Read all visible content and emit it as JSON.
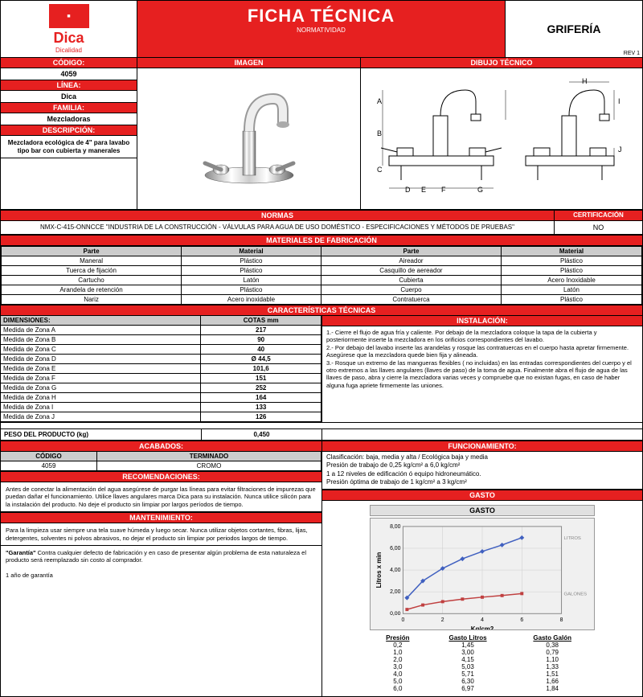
{
  "header": {
    "title": "FICHA TÉCNICA",
    "subtitle": "NORMATIVIDAD",
    "category": "GRIFERÍA",
    "rev": "REV 1",
    "brand": "Dica",
    "tagline": "Dicalidad"
  },
  "info": {
    "codigo_h": "CÓDIGO:",
    "codigo": "4059",
    "linea_h": "LÍNEA:",
    "linea": "Dica",
    "familia_h": "FAMILIA:",
    "familia": "Mezcladoras",
    "desc_h": "DESCRIPCIÓN:",
    "desc": "Mezcladora ecológica de 4\" para lavabo tipo bar con cubierta y manerales"
  },
  "areas": {
    "imagen": "IMAGEN",
    "dibujo": "DIBUJO TÉCNICO"
  },
  "normas": {
    "hdr": "NORMAS",
    "cert_hdr": "CERTIFICACIÓN",
    "text": "NMX-C-415-ONNCCE \"INDUSTRIA DE LA CONSTRUCCIÓN - VÁLVULAS PARA AGUA DE USO DOMÉSTICO - ESPECIFICACIONES Y MÉTODOS DE PRUEBAS\"",
    "cert": "NO"
  },
  "mat": {
    "hdr": "MATERIALES DE FABRICACIÓN",
    "cols": [
      "Parte",
      "Material",
      "Parte",
      "Material"
    ],
    "rows": [
      [
        "Maneral",
        "Plástico",
        "Aireador",
        "Plástico"
      ],
      [
        "Tuerca de fijación",
        "Plástico",
        "Casquillo de aereador",
        "Plástico"
      ],
      [
        "Cartucho",
        "Latón",
        "Cubierta",
        "Acero Inoxidable"
      ],
      [
        "Arandela de retención",
        "Plástico",
        "Cuerpo",
        "Latón"
      ],
      [
        "Nariz",
        "Acero inoxidable",
        "Contratuerca",
        "Plástico"
      ]
    ]
  },
  "tech": {
    "hdr": "CARACTERÍSTICAS TÉCNICAS",
    "dim_h": "DIMENSIONES:",
    "cotas_h": "COTAS mm",
    "inst_h": "INSTALACIÓN:",
    "dims": [
      [
        "Medida de Zona A",
        "217"
      ],
      [
        "Medida de Zona B",
        "90"
      ],
      [
        "Medida de Zona C",
        "40"
      ],
      [
        "Medida de Zona D",
        "Ø 44,5"
      ],
      [
        "Medida de Zona E",
        "101,6"
      ],
      [
        "Medida de Zona F",
        "151"
      ],
      [
        "Medida de Zona G",
        "252"
      ],
      [
        "Medida de Zona H",
        "164"
      ],
      [
        "Medida de Zona I",
        "133"
      ],
      [
        "Medida de Zona J",
        "126"
      ]
    ],
    "inst": "1.- Cierre el flujo de agua fría y caliente. Por debajo de la mezcladora coloque la tapa de la cubierta y posteriormente inserte la mezcladora en los orificios correspondientes del lavabo.\n2.- Por debajo del lavabo inserte las arandelas y rosque las contratuercas en el cuerpo hasta apretar firmemente. Asegúrese que la mezcladora quede bien fija y alineada.\n3.- Rosque un extremo de las mangueras flexibles ( no incluidas) en las entradas correspondientes del cuerpo y el otro extremos a las llaves angulares (llaves de paso) de la toma de agua. Finalmente abra el flujo de agua de las llaves de paso, abra y cierre la mezcladora varias veces y compruebe que no existan fugas, en caso de haber alguna fuga apriete firmemente las uniones.",
    "peso_h": "PESO DEL PRODUCTO (kg)",
    "peso": "0,450"
  },
  "acab": {
    "hdr": "ACABADOS:",
    "cols": [
      "CÓDIGO",
      "TERMINADO"
    ],
    "row": [
      "4059",
      "CROMO"
    ]
  },
  "func": {
    "hdr": "FUNCIONAMIENTO:",
    "lines": [
      "Clasificación: baja, media y alta / Ecológica baja y media",
      "Presión de trabajo de 0,25 kg/cm² a 6,0 kg/cm²",
      "1 a 12 niveles de edificación ó equipo hidroneumático.",
      "Presión óptima de trabajo de 1 kg/cm² a 3 kg/cm²"
    ]
  },
  "recom": {
    "hdr": "RECOMENDACIONES:",
    "text": "Antes de conectar la alimentación del agua asegúrese de purgar las líneas para evitar filtraciones de impurezas que puedan dañar el funcionamiento. Utilice llaves angulares marca Dica para su instalación. Nunca utilice silicón para la instalación del producto. No deje el producto sin limpiar por largos períodos de tiempo."
  },
  "mant": {
    "hdr": "MANTENIMIENTO:",
    "text": "Para la limpieza usar siempre una tela suave húmeda y luego secar. Nunca utilizar objetos cortantes, fibras, lijas, detergentes, solventes ni polvos abrasivos, no dejar el producto sin limpiar por periodos largos de tiempo."
  },
  "warranty": "\"Garantía\" Contra cualquier defecto de fabricación y en caso de presentar algún problema de esta naturaleza el producto será reemplazado sin costo al comprador.\n\n1 año de garantía",
  "gasto": {
    "hdr": "GASTO",
    "xlabel": "Kg/cm2",
    "ylabel": "Litros x min",
    "legend": [
      "LITROS",
      "GALONES"
    ],
    "xlim": [
      0,
      8
    ],
    "ylim": [
      0,
      8
    ],
    "xticks": [
      0,
      2,
      4,
      6,
      8
    ],
    "yticks": [
      "0,00",
      "2,00",
      "4,00",
      "6,00",
      "8,00"
    ],
    "litros": {
      "color": "#4060c0",
      "points": [
        [
          0.2,
          1.45
        ],
        [
          1,
          3.0
        ],
        [
          2,
          4.15
        ],
        [
          3,
          5.03
        ],
        [
          4,
          5.71
        ],
        [
          5,
          6.3
        ],
        [
          6,
          6.97
        ]
      ]
    },
    "galones": {
      "color": "#c04040",
      "points": [
        [
          0.2,
          0.38
        ],
        [
          1,
          0.79
        ],
        [
          2,
          1.1
        ],
        [
          3,
          1.33
        ],
        [
          4,
          1.51
        ],
        [
          5,
          1.66
        ],
        [
          6,
          1.84
        ]
      ]
    },
    "cols": [
      "Presión",
      "Gasto Litros",
      "Gasto Galón"
    ],
    "rows": [
      [
        "0,2",
        "1,45",
        "0,38"
      ],
      [
        "1,0",
        "3,00",
        "0,79"
      ],
      [
        "2,0",
        "4,15",
        "1,10"
      ],
      [
        "3,0",
        "5,03",
        "1,33"
      ],
      [
        "4,0",
        "5,71",
        "1,51"
      ],
      [
        "5,0",
        "6,30",
        "1,66"
      ],
      [
        "6,0",
        "6,97",
        "1,84"
      ]
    ]
  }
}
